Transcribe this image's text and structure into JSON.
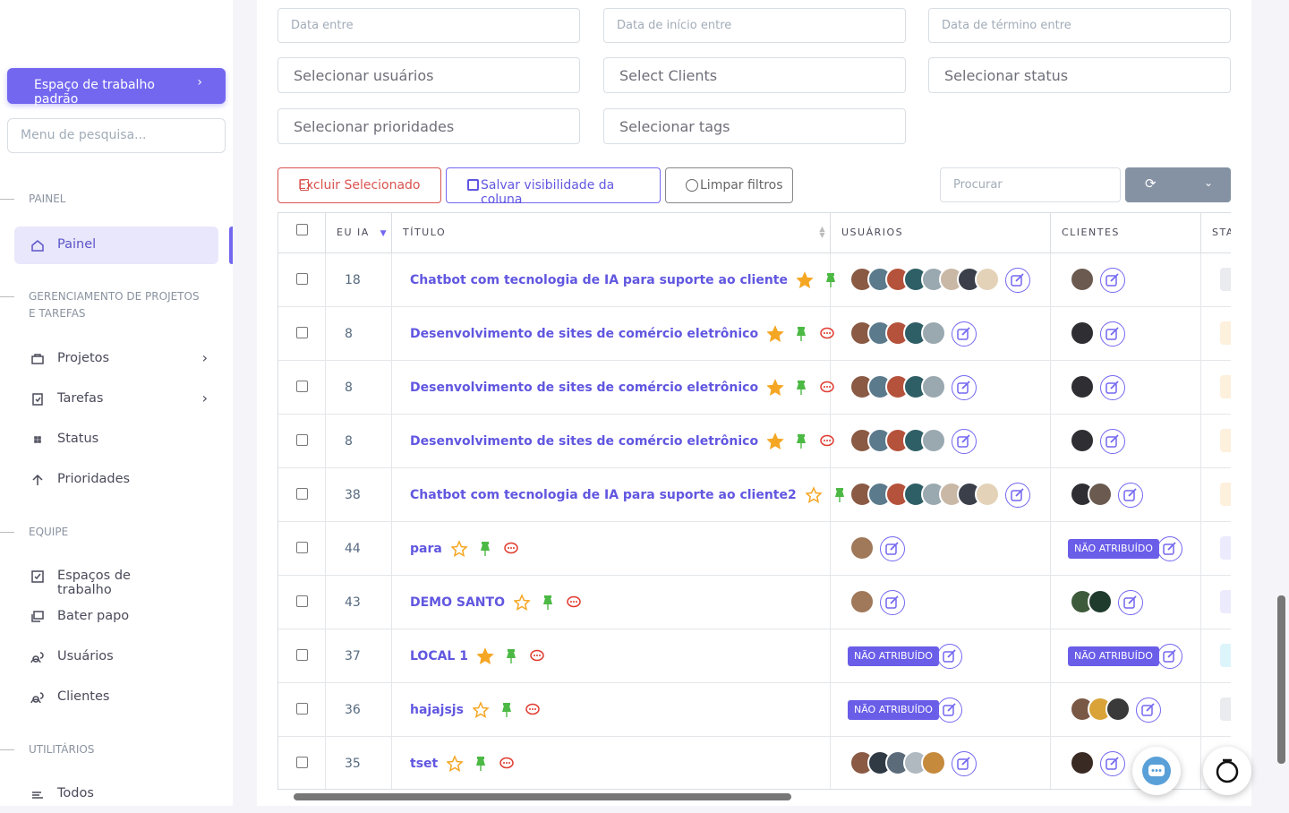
{
  "sidebar": {
    "workspace_button": "Espaço de trabalho padrão",
    "search_placeholder": "Menu de pesquisa...",
    "sections": [
      {
        "heading": "PAINEL",
        "items": [
          "Painel"
        ]
      },
      {
        "heading": "GERENCIAMENTO DE PROJETOS E TAREFAS",
        "items": [
          "Projetos",
          "Tarefas",
          "Status",
          "Prioridades"
        ]
      },
      {
        "heading": "EQUIPE",
        "items": [
          "Espaços de trabalho",
          "Bater papo",
          "Usuários",
          "Clientes"
        ]
      },
      {
        "heading": "UTILITÁRIOS",
        "items": [
          "Todos"
        ]
      }
    ]
  },
  "filters": [
    "Data entre",
    "Data de início entre",
    "Data de término entre",
    "Selecionar usuários",
    "Select Clients",
    "Selecionar status",
    "Selecionar prioridades",
    "Selecionar tags"
  ],
  "toolbar": {
    "delete": "Excluir Selecionado",
    "save": "Salvar visibilidade da coluna",
    "clear": "Limpar filtros",
    "search_placeholder": "Procurar"
  },
  "table": {
    "columns": [
      "EU IA",
      "TÍTULO",
      "USUÁRIOS",
      "CLIENTES",
      "STA"
    ],
    "rows": [
      {
        "id": 18,
        "title": "Chatbot com tecnologia de IA para suporte ao cliente",
        "starred": true,
        "users": [
          "#8a5a44",
          "#5b7a8c",
          "#b5523b",
          "#2f5f66",
          "#9aa8b0",
          "#c9b8a6",
          "#3b3f4a",
          "#e4d2b8"
        ],
        "clients": [
          "#6b5a50"
        ],
        "status_color": "#e9ebef"
      },
      {
        "id": 8,
        "title": "Desenvolvimento de sites de comércio eletrônico",
        "starred": true,
        "users": [
          "#8a5a44",
          "#5b7a8c",
          "#b5523b",
          "#2f5f66",
          "#9aa8b0"
        ],
        "clients": [
          "#2e2e33"
        ],
        "status_color": "#fdf0dc"
      },
      {
        "id": 8,
        "title": "Desenvolvimento de sites de comércio eletrônico",
        "starred": true,
        "users": [
          "#8a5a44",
          "#5b7a8c",
          "#b5523b",
          "#2f5f66",
          "#9aa8b0"
        ],
        "clients": [
          "#2e2e33"
        ],
        "status_color": "#fdf0dc"
      },
      {
        "id": 8,
        "title": "Desenvolvimento de sites de comércio eletrônico",
        "starred": true,
        "users": [
          "#8a5a44",
          "#5b7a8c",
          "#b5523b",
          "#2f5f66",
          "#9aa8b0"
        ],
        "clients": [
          "#2e2e33"
        ],
        "status_color": "#fdf0dc"
      },
      {
        "id": 38,
        "title": "Chatbot com tecnologia de IA para suporte ao cliente2",
        "starred": false,
        "users": [
          "#8a5a44",
          "#5b7a8c",
          "#b5523b",
          "#2f5f66",
          "#9aa8b0",
          "#c9b8a6",
          "#3b3f4a",
          "#e4d2b8"
        ],
        "clients": [
          "#2e2e33",
          "#6b5a50"
        ],
        "status_color": "#fdf0dc"
      },
      {
        "id": 44,
        "title": "para",
        "starred": false,
        "users": [
          "#a0785a"
        ],
        "clients": "NÃO ATRIBUÍDO",
        "status_color": "#ecebfd"
      },
      {
        "id": 43,
        "title": "DEMO SANTO",
        "starred": false,
        "users": [
          "#a0785a"
        ],
        "clients": [
          "#3d5a3a",
          "#1f3b2e"
        ],
        "status_color": "#ecebfd"
      },
      {
        "id": 37,
        "title": "LOCAL 1",
        "starred": true,
        "users": "NÃO ATRIBUÍDO",
        "clients": "NÃO ATRIBUÍDO",
        "status_color": "#dcf5fb"
      },
      {
        "id": 36,
        "title": "hajajsjs",
        "starred": false,
        "users": "NÃO ATRIBUÍDO",
        "clients": [
          "#7a5846",
          "#d9a33a",
          "#3a3a3a"
        ],
        "status_color": "#e9ebef"
      },
      {
        "id": 35,
        "title": "tset",
        "starred": false,
        "users": [
          "#8a5a44",
          "#2f3a44",
          "#5b6b7a",
          "#b0b8c0",
          "#c58a3c"
        ],
        "clients": [
          "#3a2a24"
        ],
        "status_color": "#e9ebef"
      }
    ]
  }
}
